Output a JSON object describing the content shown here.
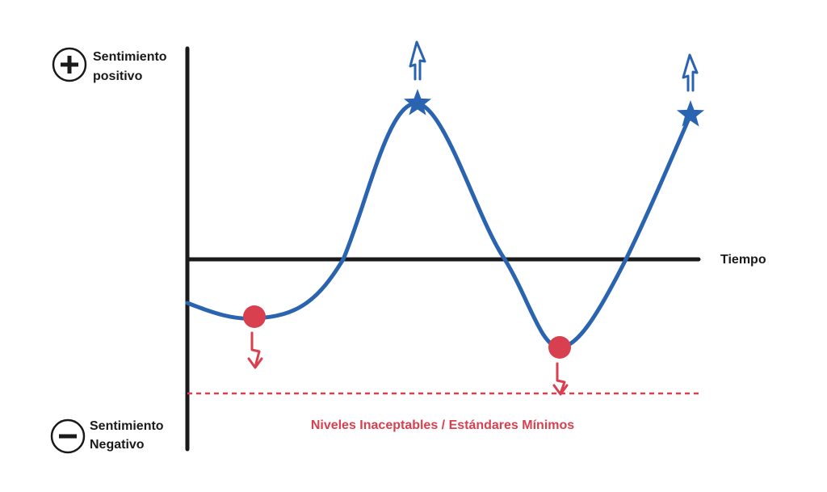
{
  "positive_label": {
    "lines": [
      "Sentimiento",
      "positivo"
    ]
  },
  "negative_label": {
    "lines": [
      "Sentimiento",
      "Negativo"
    ]
  },
  "time_label": "Tiempo",
  "threshold_label": "Niveles Inaceptables / Estándares Mínimos"
}
